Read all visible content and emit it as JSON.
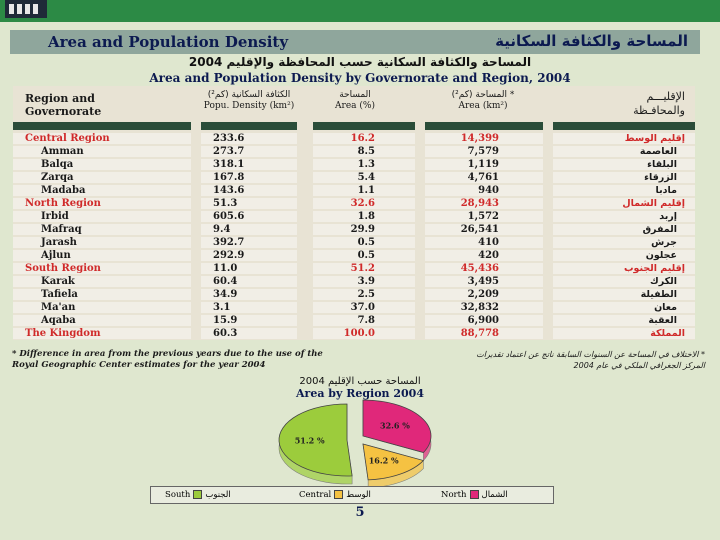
{
  "header": {
    "title_en": "Area and Population Density",
    "title_ar": "المساحة والكثافة السكانية"
  },
  "table": {
    "title_ar": "المساحة والكثافة السكانية حسب المحافظة والإقليم 2004",
    "title_en": "Area and Population Density by Governorate and Region, 2004",
    "headers": {
      "region_en_1": "Region and",
      "region_en_2": "Governorate",
      "density_ar": "الكثافة السكانية (كم²)",
      "density_en": "Popu. Density (km²)",
      "area_pct_ar": "المساحة",
      "area_pct_en": "Area (%)",
      "area_ar": "المساحة (كم²) *",
      "area_en": "Area (km²)",
      "region_ar_1": "الإقليـــم",
      "region_ar_2": "والمحافـظة"
    },
    "rows": [
      {
        "en": "Central Region",
        "density": "233.6",
        "pct": "16.2",
        "area": "14,399",
        "ar": "إقليم الوسط",
        "type": "region"
      },
      {
        "en": "Amman",
        "density": "273.7",
        "pct": "8.5",
        "area": "7,579",
        "ar": "العاصمة",
        "type": "gov"
      },
      {
        "en": "Balqa",
        "density": "318.1",
        "pct": "1.3",
        "area": "1,119",
        "ar": "البلقاء",
        "type": "gov"
      },
      {
        "en": "Zarqa",
        "density": "167.8",
        "pct": "5.4",
        "area": "4,761",
        "ar": "الزرقاء",
        "type": "gov"
      },
      {
        "en": "Madaba",
        "density": "143.6",
        "pct": "1.1",
        "area": "940",
        "ar": "مادبا",
        "type": "gov"
      },
      {
        "en": "North Region",
        "density": "51.3",
        "pct": "32.6",
        "area": "28,943",
        "ar": "إقليم الشمال",
        "type": "region"
      },
      {
        "en": "Irbid",
        "density": "605.6",
        "pct": "1.8",
        "area": "1,572",
        "ar": "إربد",
        "type": "gov"
      },
      {
        "en": "Mafraq",
        "density": "9.4",
        "pct": "29.9",
        "area": "26,541",
        "ar": "المفرق",
        "type": "gov"
      },
      {
        "en": "Jarash",
        "density": "392.7",
        "pct": "0.5",
        "area": "410",
        "ar": "جرش",
        "type": "gov"
      },
      {
        "en": "Ajlun",
        "density": "292.9",
        "pct": "0.5",
        "area": "420",
        "ar": "عجلون",
        "type": "gov"
      },
      {
        "en": "South Region",
        "density": "11.0",
        "pct": "51.2",
        "area": "45,436",
        "ar": "إقليم الجنوب",
        "type": "region"
      },
      {
        "en": "Karak",
        "density": "60.4",
        "pct": "3.9",
        "area": "3,495",
        "ar": "الكرك",
        "type": "gov"
      },
      {
        "en": "Tafiela",
        "density": "34.9",
        "pct": "2.5",
        "area": "2,209",
        "ar": "الطفيلة",
        "type": "gov"
      },
      {
        "en": "Ma'an",
        "density": "3.1",
        "pct": "37.0",
        "area": "32,832",
        "ar": "معان",
        "type": "gov"
      },
      {
        "en": "Aqaba",
        "density": "15.9",
        "pct": "7.8",
        "area": "6,900",
        "ar": "العقبة",
        "type": "gov"
      },
      {
        "en": "The Kingdom",
        "density": "60.3",
        "pct": "100.0",
        "area": "88,778",
        "ar": "المملكة",
        "type": "region"
      }
    ]
  },
  "notes": {
    "en_1": "* Difference in area from the previous years due to the use of the",
    "en_2": "Royal Geographic Center estimates   for the year 2004",
    "ar_1": "* الاختلاف في المساحة عن السنوات السابقة ناتج عن اعتماد تقديرات",
    "ar_2": "المركز الجغرافي الملكي في عام 2004"
  },
  "chart_data": {
    "type": "pie",
    "title_ar": "المساحة حسب الإقليم 2004",
    "title": "Area by Region 2004",
    "slices": [
      {
        "name": "North",
        "name_ar": "الشمال",
        "value": 32.6,
        "label": "32.6 %",
        "color": "#e0287a"
      },
      {
        "name": "Central",
        "name_ar": "الوسط",
        "value": 16.2,
        "label": "16.2 %",
        "color": "#f5c242"
      },
      {
        "name": "South",
        "name_ar": "الجنوب",
        "value": 51.2,
        "label": "51.2 %",
        "color": "#9ccc3c"
      }
    ]
  },
  "page_number": "5",
  "colors": {
    "accent_green": "#2c8a45",
    "header_bar": "#8fa69c",
    "table_rule": "#2a4d39",
    "region_red": "#d02a2a"
  }
}
